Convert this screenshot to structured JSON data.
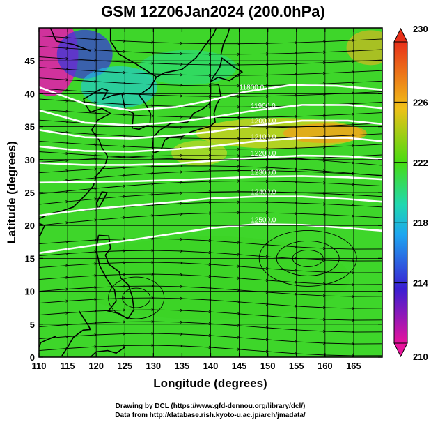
{
  "title": "GSM 12Z06Jan2024 (200.0hPa)",
  "xlabel": "Longitude (degrees)",
  "ylabel": "Latitude  (degrees)",
  "credits": [
    "Drawing by DCL (https://www.gfd-dennou.org/library/dcl/)",
    "Data from http://database.rish.kyoto-u.ac.jp/arch/jmadata/"
  ],
  "map": {
    "lon_range": [
      110,
      170
    ],
    "lat_range": [
      0,
      50
    ],
    "lon_ticks": [
      "110",
      "115",
      "120",
      "125",
      "130",
      "135",
      "140",
      "145",
      "150",
      "155",
      "160",
      "165"
    ],
    "lat_ticks": [
      "0",
      "5",
      "10",
      "15",
      "20",
      "25",
      "30",
      "35",
      "40",
      "45"
    ]
  },
  "colorbar": {
    "range": [
      210,
      230
    ],
    "tick_labels": [
      "210",
      "214",
      "218",
      "222",
      "226",
      "230"
    ],
    "colors": [
      "#e8149c",
      "#3a1ed2",
      "#1ea6f0",
      "#48dc12",
      "#f0c018",
      "#e8301a"
    ]
  },
  "contours": [
    {
      "label": "11800.0"
    },
    {
      "label": "11900.0"
    },
    {
      "label": "12000.0"
    },
    {
      "label": "12100.0"
    },
    {
      "label": "12200.0"
    },
    {
      "label": "12300.0"
    },
    {
      "label": "12400.0"
    },
    {
      "label": "12500.0"
    }
  ],
  "icons": {
    "streamline_arrow": "arrow-head-icon",
    "colorbar_end": "triangle-icon"
  }
}
